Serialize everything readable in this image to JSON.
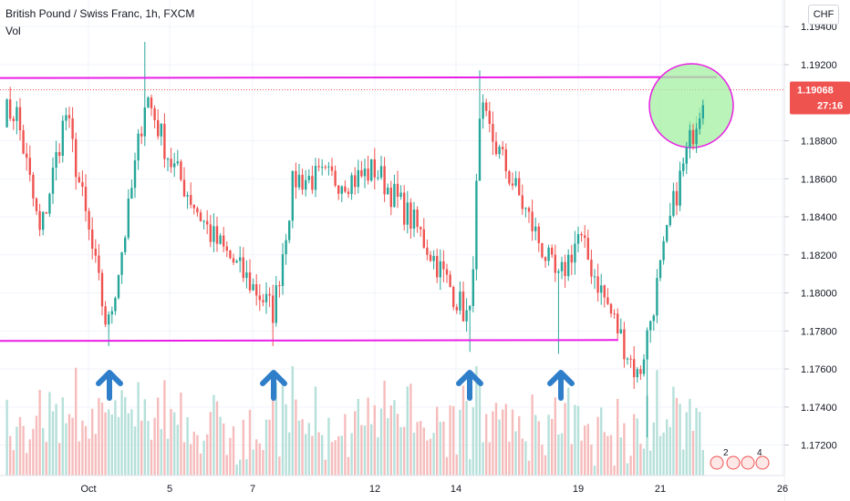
{
  "header": {
    "symbol_title": "British Pound / Swiss Franc, 1h, FXCM",
    "volume_label": "Vol",
    "currency_button": "CHF"
  },
  "colors": {
    "up": "#26a69a",
    "down": "#ef5350",
    "level_line": "#e91ee6",
    "price_badge": "#ef5350",
    "arrow": "#2f7ec9",
    "highlight_fill": "#a3f0a0",
    "highlight_stroke": "#e91ee6"
  },
  "chart_data": {
    "type": "candlestick",
    "title": "British Pound / Swiss Franc, 1h, FXCM",
    "ylim": [
      1.1704,
      1.1954
    ],
    "y_ticks": [
      "1.19400",
      "1.19200",
      "1.18800",
      "1.18600",
      "1.18400",
      "1.18200",
      "1.18000",
      "1.17800",
      "1.17600",
      "1.17400",
      "1.17200"
    ],
    "x_ticks": [
      "Oct",
      "5",
      "7",
      "12",
      "14",
      "19",
      "21",
      "26"
    ],
    "last_price": "1.19068",
    "countdown": "27:16",
    "levels": [
      {
        "role": "resistance",
        "value": 1.1913
      },
      {
        "role": "support",
        "value": 1.1775
      }
    ],
    "arrows_at": [
      "Oct 2",
      "Oct 7",
      "Oct 14",
      "Oct 18"
    ],
    "highlight": "circle around the latest candles near resistance",
    "approx_path": [
      {
        "x": "Sep 29",
        "close": 1.1895
      },
      {
        "x": "Sep 30",
        "close": 1.183
      },
      {
        "x": "Oct 1",
        "close": 1.1895
      },
      {
        "x": "Oct 2",
        "close": 1.178
      },
      {
        "x": "Oct 3",
        "close": 1.184
      },
      {
        "x": "Oct 4",
        "close": 1.1905
      },
      {
        "x": "Oct 5",
        "close": 1.187
      },
      {
        "x": "Oct 6",
        "close": 1.183
      },
      {
        "x": "Oct 7",
        "close": 1.179
      },
      {
        "x": "Oct 8",
        "close": 1.186
      },
      {
        "x": "Oct 11",
        "close": 1.186
      },
      {
        "x": "Oct 12",
        "close": 1.1865
      },
      {
        "x": "Oct 13",
        "close": 1.1835
      },
      {
        "x": "Oct 14",
        "close": 1.1785
      },
      {
        "x": "Oct 15",
        "close": 1.1895
      },
      {
        "x": "Oct 18",
        "close": 1.1805
      },
      {
        "x": "Oct 19",
        "close": 1.183
      },
      {
        "x": "Oct 20",
        "close": 1.1755
      },
      {
        "x": "Oct 21",
        "close": 1.185
      },
      {
        "x": "Oct 22",
        "close": 1.1907
      }
    ],
    "indicator_badges": [
      "2",
      "4"
    ]
  }
}
